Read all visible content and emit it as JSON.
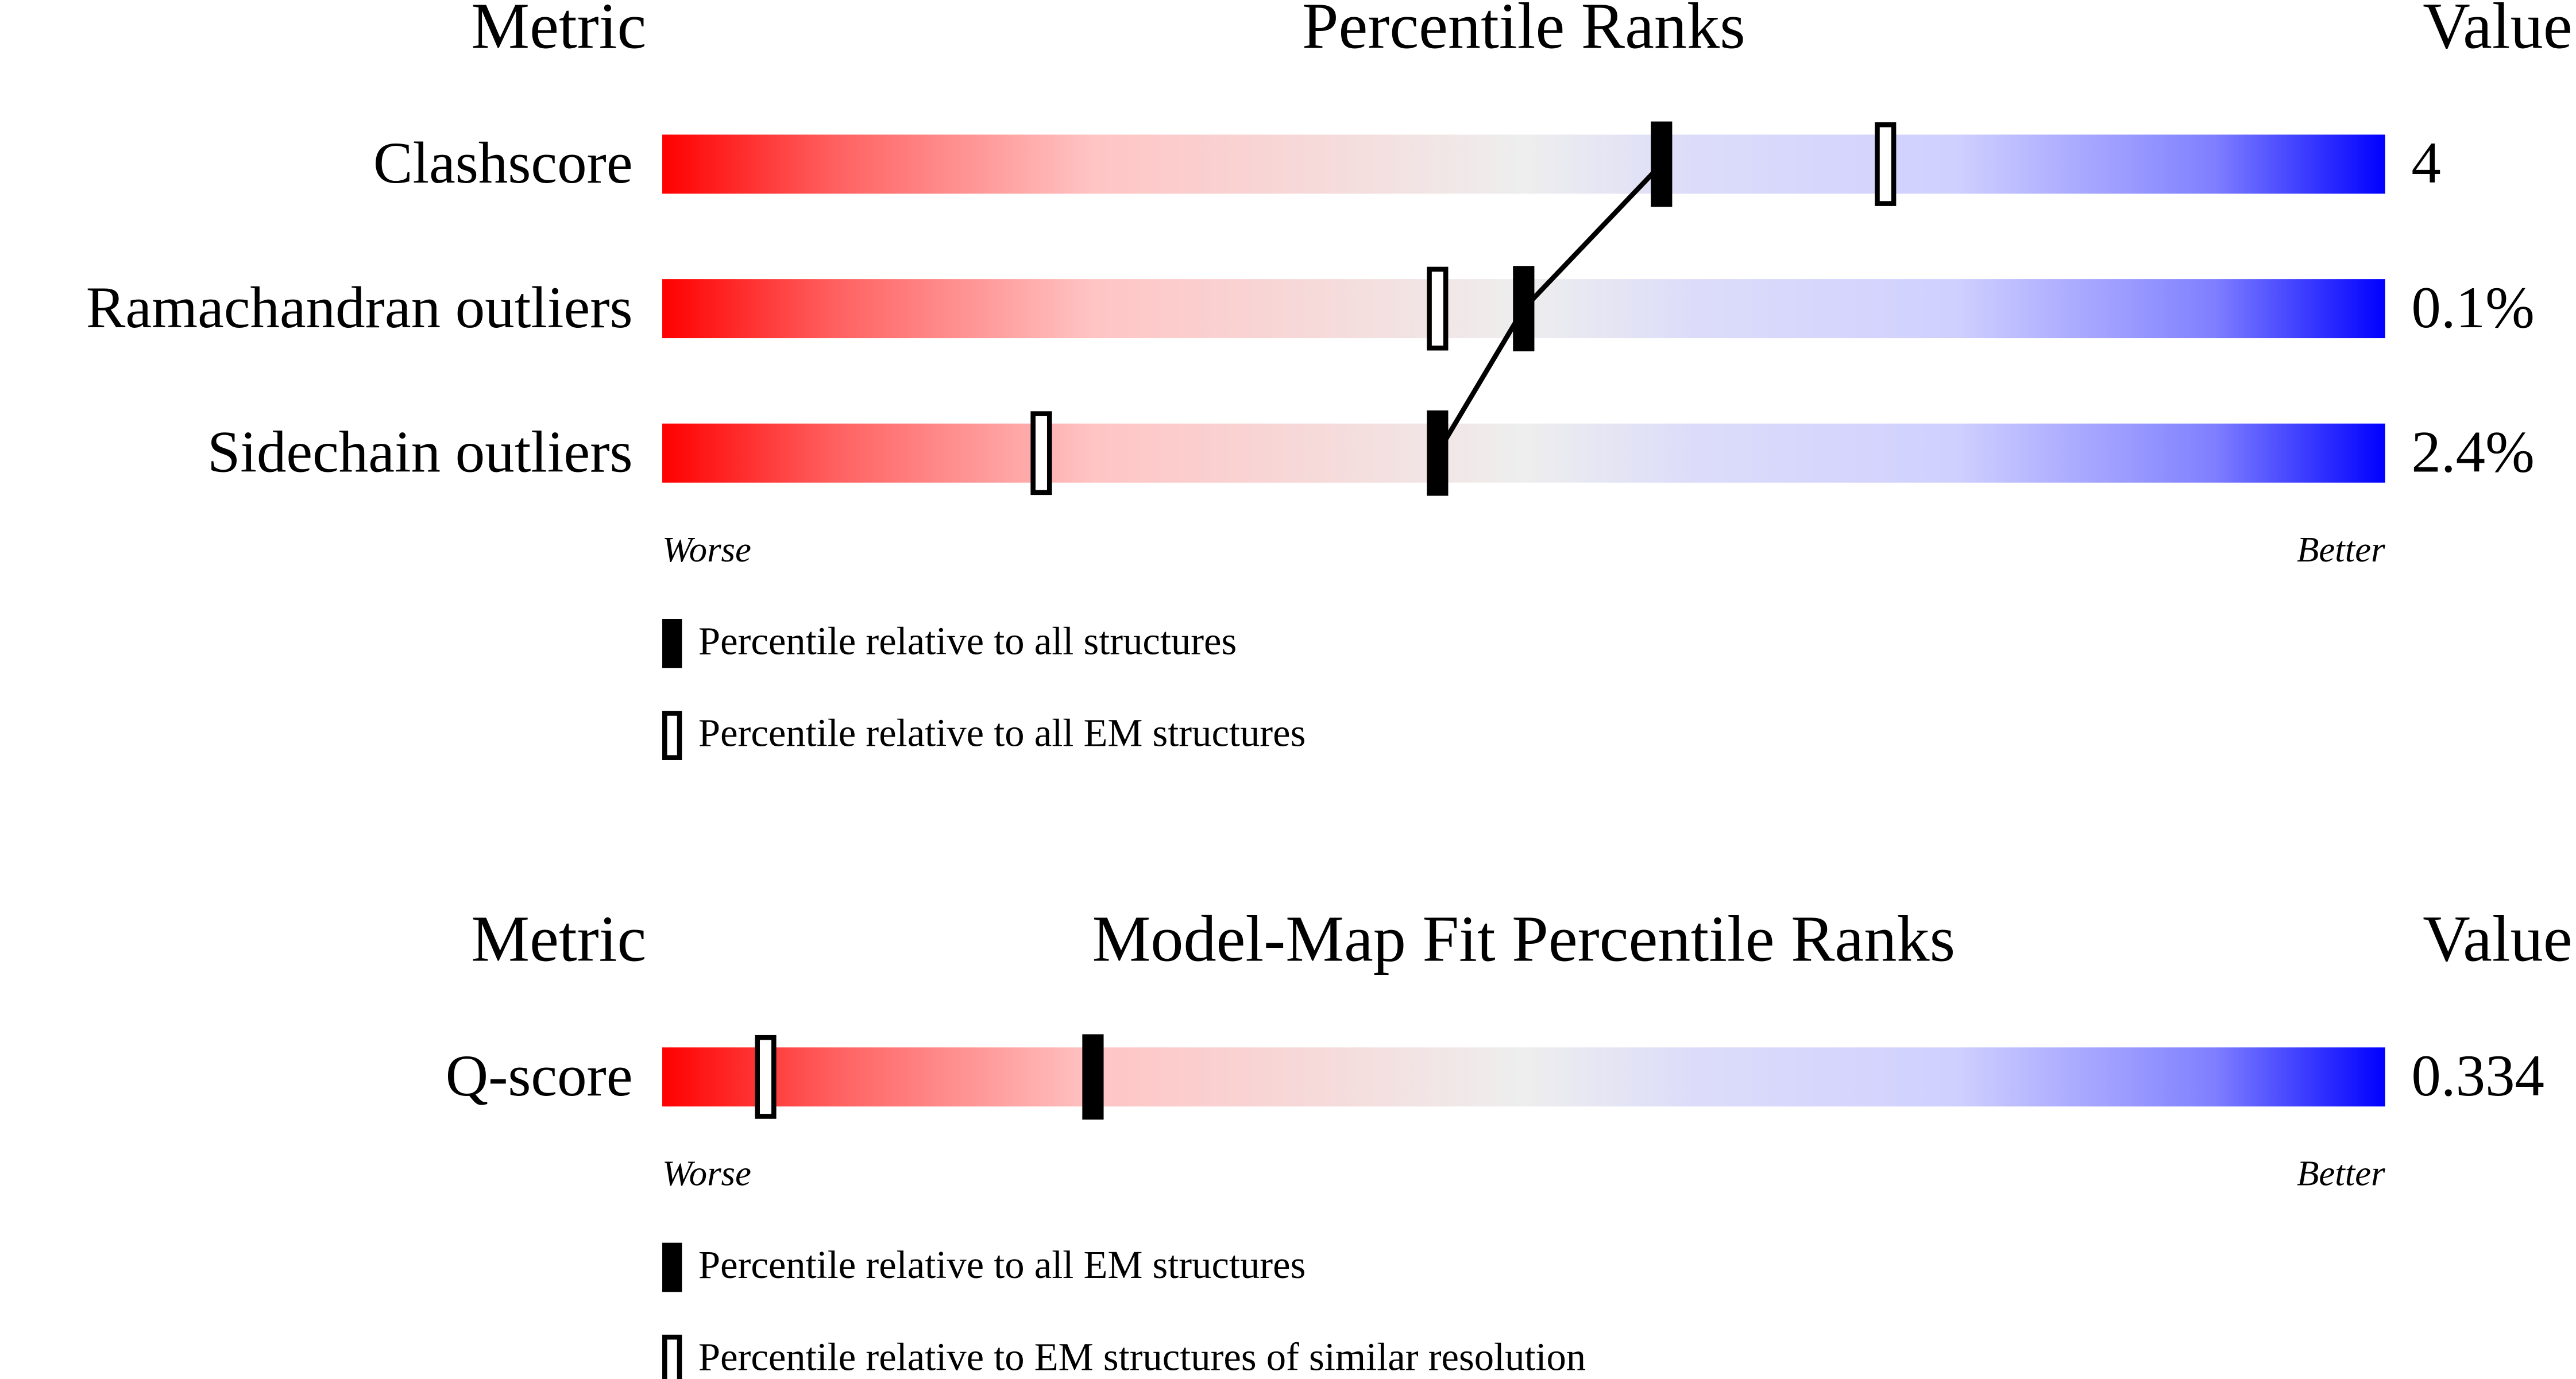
{
  "chart_data": [
    {
      "type": "percentile",
      "title": "Percentile Ranks",
      "metric_header": "Metric",
      "value_header": "Value",
      "categories": [
        "Clashscore",
        "Ramachandran outliers",
        "Sidechain outliers"
      ],
      "metric_values": [
        "4",
        "0.1%",
        "2.4%"
      ],
      "xlim": [
        0,
        100
      ],
      "low_label": "Worse",
      "high_label": "Better",
      "series": [
        {
          "name": "Percentile relative to all structures",
          "marker": "filled",
          "color": "#000000",
          "values": [
            58,
            50,
            45
          ]
        },
        {
          "name": "Percentile relative to all EM structures",
          "marker": "open",
          "color": "#000000",
          "values": [
            71,
            45,
            22
          ]
        }
      ]
    },
    {
      "type": "percentile",
      "title": "Model-Map Fit Percentile Ranks",
      "metric_header": "Metric",
      "value_header": "Value",
      "categories": [
        "Q-score"
      ],
      "metric_values": [
        "0.334"
      ],
      "xlim": [
        0,
        100
      ],
      "low_label": "Worse",
      "high_label": "Better",
      "series": [
        {
          "name": "Percentile relative to all EM structures",
          "marker": "filled",
          "color": "#000000",
          "values": [
            25
          ]
        },
        {
          "name": "Percentile relative to EM structures of similar resolution",
          "marker": "open",
          "color": "#000000",
          "values": [
            6
          ]
        }
      ]
    }
  ]
}
